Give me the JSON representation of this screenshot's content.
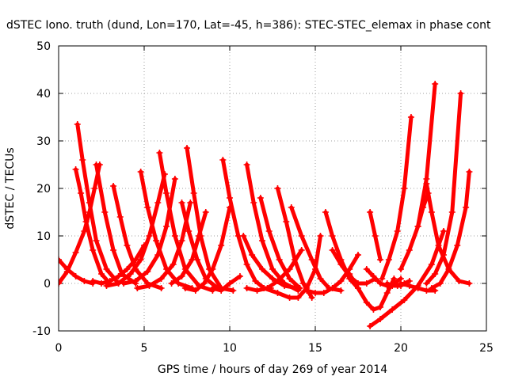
{
  "chart_data": {
    "type": "scatter",
    "title": "dSTEC Iono. truth (dund, Lon=170, Lat=-45, h=386): STEC-STEC_elemax in phase cont",
    "xlabel": "GPS time / hours of day 269 of year 2014",
    "ylabel": "dSTEC  / TECUs",
    "xlim": [
      0,
      25
    ],
    "ylim": [
      -10,
      50
    ],
    "xticks": [
      "0",
      "5",
      "10",
      "15",
      "20",
      "25"
    ],
    "yticks": [
      "-10",
      "0",
      "10",
      "20",
      "30",
      "40",
      "50"
    ],
    "grid": true,
    "marker": "+",
    "color": "#ff0000",
    "series": [
      {
        "x": [
          0.0,
          0.5,
          1.0,
          1.5,
          2.0
        ],
        "y": [
          5.0,
          3.0,
          1.5,
          0.5,
          0.0
        ]
      },
      {
        "x": [
          0.0,
          0.5,
          1.0,
          1.5,
          1.8,
          2.1,
          2.4
        ],
        "y": [
          0.0,
          2.5,
          6.5,
          11.0,
          15.0,
          20.0,
          25.0
        ]
      },
      {
        "x": [
          1.0,
          1.3,
          1.6,
          2.0,
          2.5,
          3.0
        ],
        "y": [
          24.0,
          19.0,
          13.0,
          7.0,
          2.0,
          0.0
        ]
      },
      {
        "x": [
          1.1,
          1.4,
          1.8,
          2.2,
          2.8,
          3.5
        ],
        "y": [
          33.5,
          26.0,
          17.0,
          9.0,
          3.0,
          0.0
        ]
      },
      {
        "x": [
          2.2,
          2.7,
          3.2,
          3.7,
          4.5
        ],
        "y": [
          25.0,
          15.0,
          7.0,
          2.0,
          0.0
        ]
      },
      {
        "x": [
          3.2,
          3.6,
          4.0,
          4.5,
          5.2,
          6.0
        ],
        "y": [
          20.5,
          14.0,
          8.0,
          3.0,
          0.0,
          -1.0
        ]
      },
      {
        "x": [
          2.0,
          2.5,
          3.0,
          3.5,
          4.0,
          4.5,
          5.0
        ],
        "y": [
          0.5,
          0.0,
          0.5,
          1.5,
          3.0,
          5.0,
          8.0
        ]
      },
      {
        "x": [
          4.8,
          5.2,
          5.7,
          6.3,
          7.0,
          7.8
        ],
        "y": [
          23.5,
          16.0,
          9.0,
          3.0,
          0.0,
          -1.0
        ]
      },
      {
        "x": [
          2.8,
          3.5,
          4.2,
          4.8,
          5.3,
          5.8,
          6.2
        ],
        "y": [
          -0.5,
          0.0,
          2.0,
          5.0,
          10.0,
          17.0,
          23.0
        ]
      },
      {
        "x": [
          5.9,
          6.3,
          6.8,
          7.4,
          8.2,
          9.0
        ],
        "y": [
          27.5,
          19.0,
          10.0,
          3.0,
          -0.5,
          -1.5
        ]
      },
      {
        "x": [
          3.8,
          4.5,
          5.2,
          5.8,
          6.3,
          6.8
        ],
        "y": [
          0.0,
          0.5,
          2.5,
          6.0,
          12.0,
          22.0
        ]
      },
      {
        "x": [
          7.5,
          7.9,
          8.3,
          8.8,
          9.5,
          10.2
        ],
        "y": [
          28.5,
          19.0,
          10.0,
          3.0,
          -1.0,
          -1.5
        ]
      },
      {
        "x": [
          4.6,
          5.3,
          6.0,
          6.7,
          7.2,
          7.7
        ],
        "y": [
          -1.0,
          -0.5,
          1.0,
          4.0,
          9.0,
          17.0
        ]
      },
      {
        "x": [
          7.2,
          7.6,
          8.1,
          8.6,
          9.3
        ],
        "y": [
          17.0,
          11.0,
          5.0,
          1.0,
          -1.0
        ]
      },
      {
        "x": [
          6.6,
          7.2,
          7.8,
          8.2,
          8.6
        ],
        "y": [
          0.0,
          1.5,
          5.0,
          10.0,
          15.0
        ]
      },
      {
        "x": [
          7.4,
          8.0,
          8.5,
          9.0,
          9.5,
          10.0
        ],
        "y": [
          -1.0,
          -1.5,
          0.0,
          3.0,
          8.0,
          16.0
        ]
      },
      {
        "x": [
          9.6,
          10.0,
          10.5,
          11.0,
          11.5,
          12.0,
          12.4
        ],
        "y": [
          26.0,
          18.0,
          10.0,
          4.0,
          0.5,
          -1.0,
          -1.0
        ]
      },
      {
        "x": [
          9.0,
          9.5,
          10.0,
          10.6
        ],
        "y": [
          -1.0,
          -1.5,
          0.0,
          1.5
        ]
      },
      {
        "x": [
          11.0,
          11.4,
          11.9,
          12.5,
          13.2,
          14.0
        ],
        "y": [
          25.0,
          17.0,
          9.0,
          3.0,
          0.0,
          -1.5
        ]
      },
      {
        "x": [
          10.8,
          11.3,
          11.9,
          12.5,
          13.2,
          14.0
        ],
        "y": [
          10.0,
          6.0,
          3.0,
          1.0,
          -0.5,
          -1.0
        ]
      },
      {
        "x": [
          11.8,
          12.3,
          12.9,
          13.5,
          14.1
        ],
        "y": [
          18.0,
          11.0,
          5.0,
          1.0,
          -1.0
        ]
      },
      {
        "x": [
          11.0,
          11.6,
          12.2,
          12.8,
          13.5,
          14.2
        ],
        "y": [
          -1.0,
          -1.5,
          -1.0,
          0.5,
          3.0,
          7.0
        ]
      },
      {
        "x": [
          12.8,
          13.3,
          13.8,
          14.3,
          14.8
        ],
        "y": [
          20.0,
          13.0,
          5.0,
          0.0,
          -3.0
        ]
      },
      {
        "x": [
          13.6,
          14.2,
          14.8,
          15.3,
          15.8,
          16.5
        ],
        "y": [
          16.0,
          10.0,
          5.0,
          1.0,
          -1.0,
          -1.5
        ]
      },
      {
        "x": [
          12.0,
          12.8,
          13.5,
          14.0,
          14.5,
          15.0,
          15.3
        ],
        "y": [
          -1.0,
          -2.0,
          -3.0,
          -3.0,
          -1.0,
          3.0,
          10.0
        ]
      },
      {
        "x": [
          15.6,
          16.0,
          16.5,
          17.0,
          17.5
        ],
        "y": [
          15.0,
          10.0,
          5.0,
          1.0,
          -1.0
        ]
      },
      {
        "x": [
          14.5,
          15.0,
          15.5,
          16.0,
          16.5,
          17.0,
          17.5
        ],
        "y": [
          -1.5,
          -2.0,
          -2.0,
          -1.0,
          0.5,
          3.0,
          6.0
        ]
      },
      {
        "x": [
          16.0,
          16.5,
          17.0,
          17.5,
          18.0,
          18.5
        ],
        "y": [
          7.0,
          4.0,
          1.5,
          0.0,
          0.0,
          1.0
        ]
      },
      {
        "x": [
          17.0,
          17.5,
          18.0,
          18.4,
          18.8,
          19.2,
          19.6
        ],
        "y": [
          2.0,
          -1.0,
          -4.0,
          -5.5,
          -5.0,
          -2.0,
          1.0
        ]
      },
      {
        "x": [
          18.2,
          18.5,
          18.8
        ],
        "y": [
          15.0,
          10.0,
          5.0
        ]
      },
      {
        "x": [
          18.0,
          18.4,
          18.8,
          19.2,
          19.6,
          20.0
        ],
        "y": [
          3.0,
          1.5,
          0.0,
          -0.5,
          0.0,
          1.0
        ]
      },
      {
        "x": [
          18.2,
          18.8,
          19.5,
          20.2,
          21.0,
          21.8,
          22.5
        ],
        "y": [
          -9.0,
          -7.5,
          -5.5,
          -3.5,
          -0.5,
          4.0,
          11.0
        ]
      },
      {
        "x": [
          18.9,
          19.3,
          19.8,
          20.2,
          20.6
        ],
        "y": [
          1.0,
          5.0,
          11.0,
          20.0,
          35.0
        ]
      },
      {
        "x": [
          19.2,
          19.5,
          19.8,
          20.0,
          20.2,
          20.5
        ],
        "y": [
          0.0,
          -0.5,
          -0.5,
          -0.5,
          0.0,
          0.5
        ]
      },
      {
        "x": [
          20.0,
          20.5,
          21.0,
          21.5,
          22.0
        ],
        "y": [
          0.0,
          -0.5,
          -1.0,
          -1.5,
          -1.5
        ]
      },
      {
        "x": [
          20.0,
          20.5,
          21.0,
          21.5,
          22.0
        ],
        "y": [
          3.0,
          7.0,
          12.0,
          22.0,
          42.0
        ]
      },
      {
        "x": [
          21.5,
          21.8,
          22.2,
          22.8,
          23.4,
          24.0
        ],
        "y": [
          21.0,
          15.0,
          8.0,
          3.0,
          0.5,
          0.0
        ]
      },
      {
        "x": [
          21.0,
          21.3,
          21.6
        ],
        "y": [
          12.0,
          16.0,
          19.0
        ]
      },
      {
        "x": [
          21.5,
          22.0,
          22.5,
          23.0,
          23.5
        ],
        "y": [
          0.0,
          2.0,
          6.0,
          15.0,
          40.0
        ]
      },
      {
        "x": [
          21.8,
          22.3,
          22.8,
          23.3,
          23.8,
          24.0
        ],
        "y": [
          -1.0,
          0.0,
          3.0,
          8.0,
          16.0,
          23.5
        ]
      }
    ]
  }
}
